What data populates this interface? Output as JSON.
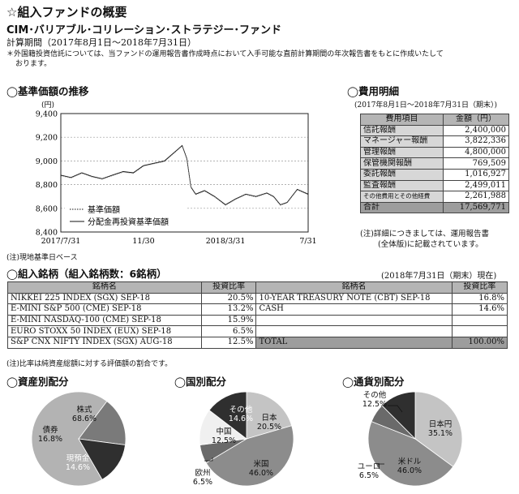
{
  "header": {
    "section_title": "☆組入ファンドの概要",
    "fund_name": "CIM･バリアブル･コリレーション･ストラテジー･ファンド",
    "period": "計算期間（2017年8月1日～2018年7月31日）",
    "note_line1": "＊外国籍投資信託については、当ファンドの運用報告書作成時点において入手可能な直前計算期間の年次報告書をもとに作成いたして",
    "note_line2": "おります。"
  },
  "nav_chart": {
    "heading": "◯基準価額の推移",
    "unit": "(円)",
    "legend": [
      "基準価額",
      "分配金再投資基準価額"
    ],
    "footnote": "(注)現地基準日ベース"
  },
  "chart_data": {
    "type": "line",
    "ylim": [
      8400,
      9400
    ],
    "yticks": [
      "9,400",
      "9,200",
      "9,000",
      "8,800",
      "8,600",
      "8,400"
    ],
    "xticks": [
      "2017/7/31",
      "11/30",
      "2018/3/31",
      "7/31"
    ],
    "series": [
      {
        "name": "基準価額",
        "x": [
          "2017-07-31",
          "2017-08-15",
          "2017-08-31",
          "2017-09-15",
          "2017-09-30",
          "2017-10-15",
          "2017-10-31",
          "2017-11-15",
          "2017-11-30",
          "2017-12-15",
          "2017-12-31",
          "2018-01-10",
          "2018-01-20",
          "2018-01-26",
          "2018-02-02",
          "2018-02-08",
          "2018-02-15",
          "2018-02-28",
          "2018-03-15",
          "2018-03-31",
          "2018-04-15",
          "2018-04-30",
          "2018-05-15",
          "2018-05-31",
          "2018-06-10",
          "2018-06-20",
          "2018-06-30",
          "2018-07-15",
          "2018-07-31"
        ],
        "values": [
          8880,
          8860,
          8900,
          8870,
          8850,
          8880,
          8910,
          8900,
          8960,
          8980,
          9000,
          9050,
          9100,
          9130,
          9020,
          8780,
          8720,
          8750,
          8700,
          8630,
          8680,
          8720,
          8700,
          8730,
          8700,
          8630,
          8650,
          8760,
          8720
        ]
      },
      {
        "name": "分配金再投資基準価額",
        "x": [
          "2017-07-31",
          "2017-08-15",
          "2017-08-31",
          "2017-09-15",
          "2017-09-30",
          "2017-10-15",
          "2017-10-31",
          "2017-11-15",
          "2017-11-30",
          "2017-12-15",
          "2017-12-31",
          "2018-01-10",
          "2018-01-20",
          "2018-01-26",
          "2018-02-02",
          "2018-02-08",
          "2018-02-15",
          "2018-02-28",
          "2018-03-15",
          "2018-03-31",
          "2018-04-15",
          "2018-04-30",
          "2018-05-15",
          "2018-05-31",
          "2018-06-10",
          "2018-06-20",
          "2018-06-30",
          "2018-07-15",
          "2018-07-31"
        ],
        "values": [
          8880,
          8860,
          8900,
          8870,
          8850,
          8880,
          8910,
          8900,
          8960,
          8980,
          9000,
          9050,
          9100,
          9130,
          9020,
          8780,
          8720,
          8750,
          8700,
          8630,
          8680,
          8720,
          8700,
          8730,
          8700,
          8630,
          8650,
          8760,
          8720
        ]
      }
    ]
  },
  "fees": {
    "heading": "◯費用明細",
    "period": "(2017年8月1日～2018年7月31日（期末）)",
    "col_item": "費用項目",
    "col_amount": "金額（円）",
    "rows": [
      {
        "name": "信託報酬",
        "amount": "2,400,000"
      },
      {
        "name": "マネージャー報酬",
        "amount": "3,822,336"
      },
      {
        "name": "管理報酬",
        "amount": "4,800,000"
      },
      {
        "name": "保管機関報酬",
        "amount": "769,509"
      },
      {
        "name": "委託報酬",
        "amount": "1,016,927"
      },
      {
        "name": "監査報酬",
        "amount": "2,499,011"
      },
      {
        "name": "その他費用とその他経費",
        "amount": "2,261,988"
      }
    ],
    "total_label": "合計",
    "total_amount": "17,569,771",
    "note1": "(注)詳細につきましては、運用報告書",
    "note2": "(全体版)に記載されています。"
  },
  "holdings": {
    "heading": "◯組入銘柄（組入銘柄数：6銘柄）",
    "date": "(2018年7月31日（期末）現在)",
    "col_name": "銘柄名",
    "col_ratio": "投資比率",
    "left": [
      {
        "name": "NIKKEI 225 INDEX (SGX) SEP-18",
        "ratio": "20.5%"
      },
      {
        "name": "E-MINI S&P 500 (CME) SEP-18",
        "ratio": "13.2%"
      },
      {
        "name": "E-MINI NASDAQ-100 (CME) SEP-18",
        "ratio": "15.9%"
      },
      {
        "name": "EURO STOXX 50 INDEX (EUX) SEP-18",
        "ratio": "6.5%"
      },
      {
        "name": "S&P CNX NIFTY INDEX (SGX) AUG-18",
        "ratio": "12.5%"
      }
    ],
    "right": [
      {
        "name": "10-YEAR TREASURY NOTE (CBT) SEP-18",
        "ratio": "16.8%"
      },
      {
        "name": "CASH",
        "ratio": "14.6%"
      },
      {
        "name": "",
        "ratio": ""
      },
      {
        "name": "",
        "ratio": ""
      }
    ],
    "total_label": "TOTAL",
    "total_ratio": "100.00%",
    "note": "(注)比率は純資産総額に対する評価額の割合です。"
  },
  "pies": [
    {
      "heading": "◯資産別配分",
      "slices": [
        {
          "label": "株式",
          "value": 68.6,
          "text": "68.6%",
          "color": "#b3b3b3"
        },
        {
          "label": "債券",
          "value": 16.8,
          "text": "16.8%",
          "color": "#7a7a7a"
        },
        {
          "label": "現預金",
          "value": 14.6,
          "text": "14.6%",
          "color": "#2f2f2f"
        }
      ]
    },
    {
      "heading": "◯国別配分",
      "slices": [
        {
          "label": "日本",
          "value": 20.5,
          "text": "20.5%",
          "color": "#c4c4c4"
        },
        {
          "label": "米国",
          "value": 46.0,
          "text": "46.0%",
          "color": "#8c8c8c"
        },
        {
          "label": "欧州",
          "value": 6.5,
          "text": "6.5%",
          "color": "#6a6a6a"
        },
        {
          "label": "中国",
          "value": 12.5,
          "text": "12.5%",
          "color": "#f0f0f0"
        },
        {
          "label": "その他",
          "value": 14.6,
          "text": "14.6%",
          "color": "#2f2f2f"
        }
      ]
    },
    {
      "heading": "◯通貨別配分",
      "slices": [
        {
          "label": "日本円",
          "value": 35.1,
          "text": "35.1%",
          "color": "#c4c4c4"
        },
        {
          "label": "米ドル",
          "value": 46.0,
          "text": "46.0%",
          "color": "#8c8c8c"
        },
        {
          "label": "ユーロ",
          "value": 6.5,
          "text": "6.5%",
          "color": "#6a6a6a"
        },
        {
          "label": "その他",
          "value": 12.5,
          "text": "12.5%",
          "color": "#2f2f2f"
        }
      ]
    }
  ]
}
